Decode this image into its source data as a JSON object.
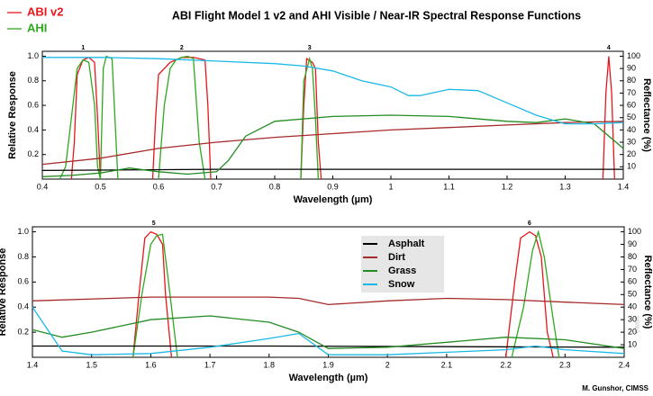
{
  "title": "ABI Flight Model 1 v2 and AHI Visible / Near-IR Spectral Response Functions",
  "credit": "M. Gunshor, CIMSS",
  "watermark": "CIMSS",
  "chart_data": [
    {
      "type": "line",
      "xlabel": "Wavelength (µm)",
      "ylabel": "Relative Response",
      "y2label": "Reflectance (%)",
      "xlim": [
        0.4,
        1.4
      ],
      "xticks": [
        0.4,
        0.5,
        0.6,
        0.7,
        0.8,
        0.9,
        1,
        1.1,
        1.2,
        1.3,
        1.4
      ],
      "ylim": [
        0,
        1.04
      ],
      "yticks": [
        0.2,
        0.4,
        0.6,
        0.8,
        {
          "value": 1,
          "label": "1.0"
        }
      ],
      "y2lim": [
        0,
        104
      ],
      "y2ticks": [
        10,
        20,
        30,
        40,
        50,
        60,
        70,
        80,
        90,
        100
      ],
      "annotations": [
        {
          "text": "1",
          "x": 0.47
        },
        {
          "text": "2",
          "x": 0.64
        },
        {
          "text": "3",
          "x": 0.86
        },
        {
          "text": "4",
          "x": 1.375
        }
      ],
      "series": [
        {
          "name": "ABI v2",
          "color": "#e8161b",
          "x": [
            0.45,
            0.455,
            0.46,
            0.47,
            0.48,
            0.49,
            0.495,
            0.5,
            null,
            0.59,
            0.595,
            0.6,
            0.62,
            0.64,
            0.66,
            0.68,
            0.685,
            0.69,
            null,
            0.845,
            0.85,
            0.855,
            0.865,
            0.87,
            0.875,
            0.88,
            null,
            1.365,
            1.37,
            1.375,
            1.38,
            1.385
          ],
          "values": [
            0,
            0.3,
            0.85,
            0.97,
            0.99,
            0.95,
            0.5,
            0,
            null,
            0,
            0.5,
            0.85,
            0.95,
            0.99,
            0.99,
            0.97,
            0.6,
            0,
            null,
            0,
            0.6,
            0.98,
            0.95,
            0.9,
            0.3,
            0,
            null,
            0,
            0.7,
            1.0,
            0.7,
            0
          ]
        },
        {
          "name": "AHI",
          "color": "#2fa81f",
          "x": [
            0.43,
            0.44,
            0.45,
            0.46,
            0.47,
            0.48,
            0.49,
            0.495,
            0.5,
            null,
            0.5,
            0.505,
            0.51,
            0.52,
            0.525,
            0.53,
            null,
            0.6,
            0.61,
            0.62,
            0.63,
            0.64,
            0.65,
            0.66,
            0.67,
            0.68,
            null,
            0.845,
            0.85,
            0.86,
            0.865,
            0.87,
            0.875
          ],
          "values": [
            0,
            0.1,
            0.5,
            0.9,
            0.97,
            0.95,
            0.6,
            0.1,
            0,
            null,
            0,
            0.9,
            1.0,
            0.98,
            0.5,
            0,
            null,
            0,
            0.6,
            0.9,
            0.97,
            0.99,
            1.0,
            0.98,
            0.3,
            0,
            null,
            0,
            0.8,
            0.98,
            0.9,
            0.5,
            0
          ]
        },
        {
          "color": "#000000",
          "axis": "y2",
          "x": [
            0.4,
            0.7,
            1.0,
            1.4
          ],
          "values": [
            7,
            8,
            8,
            8
          ]
        },
        {
          "color": "#a52a2a",
          "axis": "y2",
          "x": [
            0.4,
            0.5,
            0.6,
            0.7,
            0.8,
            0.9,
            1.0,
            1.1,
            1.2,
            1.3,
            1.4
          ],
          "values": [
            12,
            17,
            25,
            30,
            34,
            37,
            40,
            42,
            44,
            46,
            47
          ]
        },
        {
          "color": "#228b22",
          "axis": "y2",
          "x": [
            0.4,
            0.45,
            0.5,
            0.55,
            0.6,
            0.65,
            0.7,
            0.72,
            0.75,
            0.8,
            0.9,
            1.0,
            1.1,
            1.2,
            1.25,
            1.3,
            1.35,
            1.4
          ],
          "values": [
            2,
            3,
            5,
            9,
            6,
            4,
            6,
            15,
            35,
            47,
            51,
            52,
            51,
            47,
            46,
            49,
            45,
            25
          ]
        },
        {
          "color": "#1ab8e8",
          "axis": "y2",
          "x": [
            0.4,
            0.5,
            0.6,
            0.7,
            0.8,
            0.85,
            0.9,
            0.95,
            1.0,
            1.03,
            1.05,
            1.1,
            1.15,
            1.2,
            1.25,
            1.3,
            1.35,
            1.4
          ],
          "values": [
            99,
            99,
            98,
            96,
            94,
            92,
            88,
            80,
            75,
            68,
            68,
            73,
            72,
            62,
            52,
            45,
            45,
            46
          ]
        }
      ]
    },
    {
      "type": "line",
      "xlabel": "Wavelength (µm)",
      "ylabel": "Relative Response",
      "y2label": "Reflectance (%)",
      "xlim": [
        1.4,
        2.4
      ],
      "xticks": [
        1.4,
        1.5,
        1.6,
        1.7,
        1.8,
        1.9,
        2,
        2.1,
        2.2,
        2.3,
        2.4
      ],
      "ylim": [
        0,
        1.04
      ],
      "yticks": [
        0.2,
        0.4,
        0.6,
        0.8,
        {
          "value": 1,
          "label": "1.0"
        }
      ],
      "y2lim": [
        0,
        104
      ],
      "y2ticks": [
        10,
        20,
        30,
        40,
        50,
        60,
        70,
        80,
        90,
        100
      ],
      "annotations": [
        {
          "text": "5",
          "x": 1.605
        },
        {
          "text": "6",
          "x": 2.24
        }
      ],
      "series": [
        {
          "color": "#e8161b",
          "x": [
            1.57,
            1.58,
            1.59,
            1.6,
            1.61,
            1.62,
            1.625,
            1.635,
            null,
            2.2,
            2.215,
            2.225,
            2.24,
            2.25,
            2.26,
            2.27,
            2.28
          ],
          "values": [
            0,
            0.5,
            0.95,
            1.0,
            0.98,
            0.9,
            0.5,
            0,
            null,
            0,
            0.6,
            0.95,
            1.0,
            0.97,
            0.8,
            0.2,
            0
          ]
        },
        {
          "color": "#2fa81f",
          "x": [
            1.57,
            1.585,
            1.6,
            1.61,
            1.62,
            1.63,
            1.645,
            null,
            2.21,
            2.23,
            2.245,
            2.255,
            2.265,
            2.28,
            2.29
          ],
          "values": [
            0,
            0.5,
            0.9,
            0.97,
            0.98,
            0.6,
            0,
            null,
            0,
            0.4,
            0.85,
            1.0,
            0.8,
            0.3,
            0
          ]
        },
        {
          "name": "Asphalt",
          "color": "#000000",
          "axis": "y2",
          "x": [
            1.4,
            1.8,
            2.4
          ],
          "values": [
            9,
            9,
            8
          ]
        },
        {
          "name": "Dirt",
          "color": "#a52a2a",
          "axis": "y2",
          "x": [
            1.4,
            1.6,
            1.8,
            1.85,
            1.9,
            2.0,
            2.1,
            2.2,
            2.3,
            2.4
          ],
          "values": [
            45,
            48,
            48,
            47,
            42,
            45,
            47,
            46,
            44,
            42
          ]
        },
        {
          "name": "Grass",
          "color": "#228b22",
          "axis": "y2",
          "x": [
            1.4,
            1.45,
            1.5,
            1.6,
            1.7,
            1.8,
            1.85,
            1.9,
            2.0,
            2.1,
            2.2,
            2.3,
            2.4
          ],
          "values": [
            22,
            16,
            20,
            30,
            33,
            28,
            20,
            7,
            8,
            12,
            16,
            14,
            7
          ]
        },
        {
          "name": "Snow",
          "color": "#1ab8e8",
          "axis": "y2",
          "x": [
            1.4,
            1.45,
            1.5,
            1.6,
            1.7,
            1.8,
            1.85,
            1.9,
            2.0,
            2.1,
            2.2,
            2.25,
            2.3,
            2.4
          ],
          "values": [
            40,
            5,
            2,
            3,
            8,
            15,
            19,
            2,
            2,
            4,
            6,
            9,
            6,
            3
          ]
        }
      ]
    }
  ]
}
